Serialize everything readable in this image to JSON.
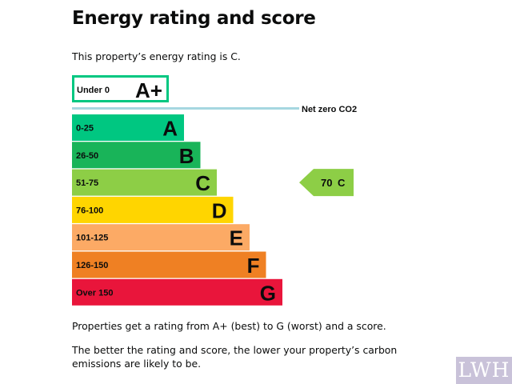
{
  "page": {
    "title": "Energy rating and score",
    "intro": "This property’s energy rating is C.",
    "note1": "Properties get a rating from A+ (best) to G (worst) and a score.",
    "note2": "The better the rating and score, the lower your property’s carbon emissions are likely to be.",
    "watermark": "LWH"
  },
  "chart_data": {
    "type": "bar",
    "categories": [
      "A+",
      "A",
      "B",
      "C",
      "D",
      "E",
      "F",
      "G"
    ],
    "ranges": [
      "Under 0",
      "0-25",
      "26-50",
      "51-75",
      "76-100",
      "101-125",
      "126-150",
      "Over 150"
    ],
    "colors": [
      "#ffffff",
      "#00c781",
      "#19b459",
      "#8dce46",
      "#ffd500",
      "#fcaa65",
      "#ef8023",
      "#e9153b"
    ],
    "outline_color": "#00c781",
    "net_zero_label": "Net zero CO2",
    "net_zero_line_color": "#a6d7e0",
    "current": {
      "rating": "C",
      "score": 70,
      "score_text": "70",
      "rating_text": "C",
      "color": "#8dce46"
    }
  }
}
